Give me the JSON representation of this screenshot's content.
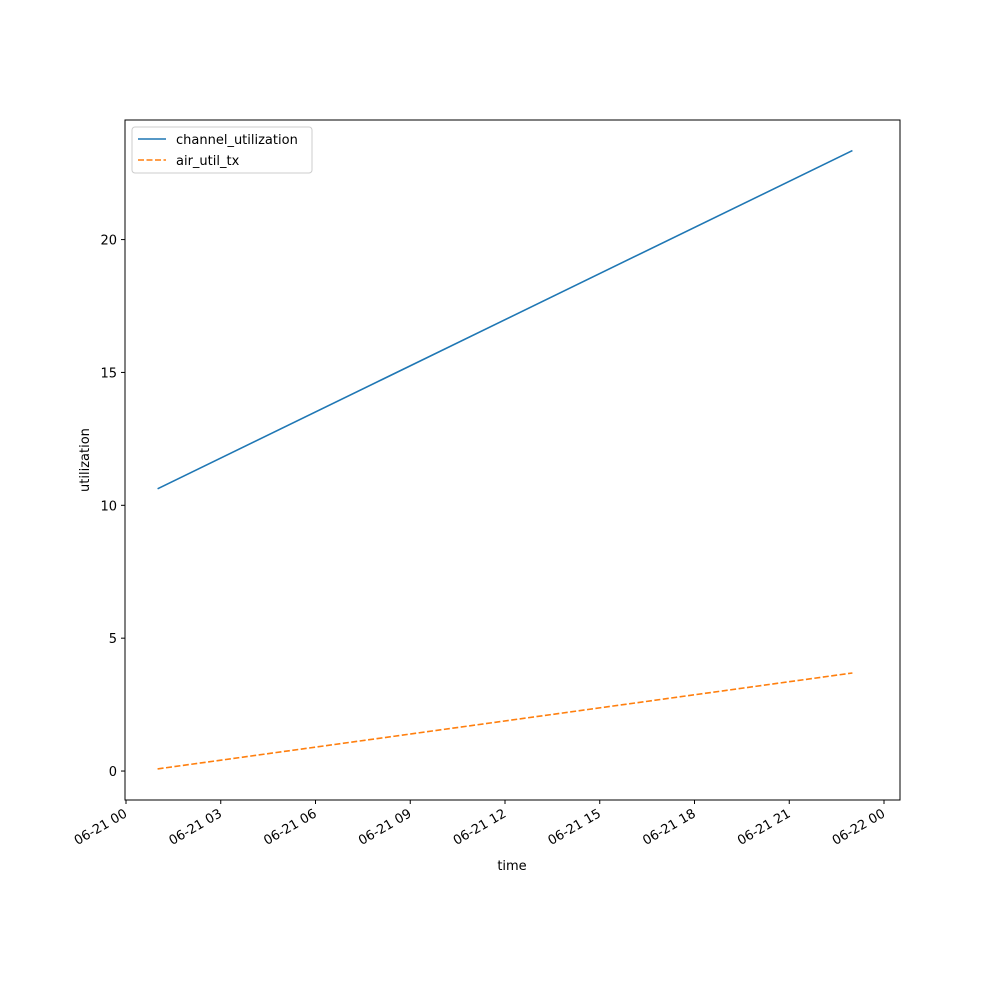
{
  "chart_data": {
    "type": "line",
    "x_label": "time",
    "y_label": "utilization",
    "x": [
      "06-21 01",
      "06-21 23"
    ],
    "series": [
      {
        "name": "channel_utilization",
        "color": "#1f77b4",
        "linestyle": "solid",
        "values": [
          10.62,
          23.35
        ]
      },
      {
        "name": "air_util_tx",
        "color": "#ff7f0e",
        "linestyle": "dashed",
        "values": [
          0.08,
          3.69
        ]
      }
    ],
    "xlim": [
      "06-21 00",
      "06-22 00"
    ],
    "xticks": [
      "06-21 00",
      "06-21 03",
      "06-21 06",
      "06-21 09",
      "06-21 12",
      "06-21 15",
      "06-21 18",
      "06-21 21",
      "06-22 00"
    ],
    "ylim": [
      -1.09,
      24.5
    ],
    "yticks": [
      0,
      5,
      10,
      15,
      20
    ],
    "legend": "upper left"
  }
}
